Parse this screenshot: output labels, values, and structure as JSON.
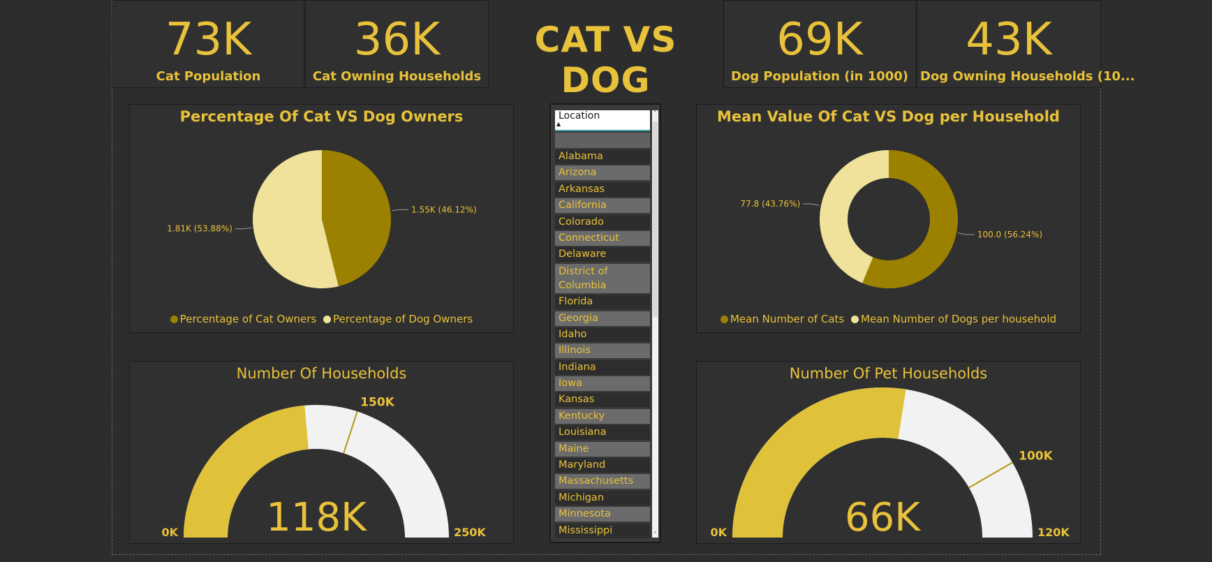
{
  "dashboard": {
    "title": "CAT VS DOG"
  },
  "kpis": [
    {
      "value": "73K",
      "label": "Cat Population"
    },
    {
      "value": "36K",
      "label": "Cat Owning Households"
    },
    {
      "value": "69K",
      "label": "Dog Population (in 1000)"
    },
    {
      "value": "43K",
      "label": "Dog Owning Households (10..."
    }
  ],
  "slicer": {
    "header": "Location",
    "items": [
      "Alabama",
      "Arizona",
      "Arkansas",
      "California",
      "Colorado",
      "Connecticut",
      "Delaware",
      "District of Columbia",
      "Florida",
      "Georgia",
      "Idaho",
      "Illinois",
      "Indiana",
      "Iowa",
      "Kansas",
      "Kentucky",
      "Louisiana",
      "Maine",
      "Maryland",
      "Massachusetts",
      "Michigan",
      "Minnesota",
      "Mississippi"
    ]
  },
  "colors": {
    "accent": "#e8c23a",
    "dark_gold": "#9c8100",
    "light_cream": "#f0e29a",
    "gauge_bg": "#f2f2f2",
    "gauge_fill": "#e0c13a"
  },
  "chart_data": [
    {
      "type": "pie",
      "title": "Percentage Of Cat VS Dog Owners",
      "series": [
        {
          "name": "Percentage of Cat Owners",
          "label": "1.55K (46.12%)",
          "value": 1550,
          "percent": 46.12,
          "color": "#9c8100"
        },
        {
          "name": "Percentage of Dog Owners",
          "label": "1.81K (53.88%)",
          "value": 1810,
          "percent": 53.88,
          "color": "#f0e29a"
        }
      ],
      "legend": "bottom"
    },
    {
      "type": "pie",
      "subtype": "donut",
      "title": "Mean Value Of Cat VS Dog per Household",
      "series": [
        {
          "name": "Mean Number of Cats",
          "label": "100.0 (56.24%)",
          "value": 100.0,
          "percent": 56.24,
          "color": "#9c8100"
        },
        {
          "name": "Mean Number of Dogs per household",
          "label": "77.8 (43.76%)",
          "value": 77.8,
          "percent": 43.76,
          "color": "#f0e29a"
        }
      ],
      "legend": "bottom"
    },
    {
      "type": "gauge",
      "title": "Number Of Households",
      "value": 118000,
      "value_label": "118K",
      "min": 0,
      "min_label": "0K",
      "max": 250000,
      "max_label": "250K",
      "target": 150000,
      "target_label": "150K"
    },
    {
      "type": "gauge",
      "title": "Number Of Pet Households",
      "value": 66000,
      "value_label": "66K",
      "min": 0,
      "min_label": "0K",
      "max": 120000,
      "max_label": "120K",
      "target": 100000,
      "target_label": "100K"
    }
  ]
}
